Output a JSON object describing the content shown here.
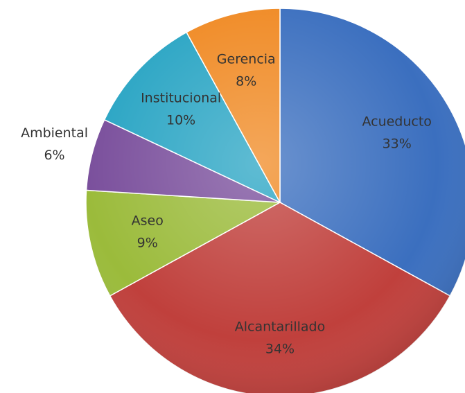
{
  "chart_data": {
    "type": "pie",
    "categories": [
      "Acueducto",
      "Alcantarillado",
      "Aseo",
      "Ambiental",
      "Institucional",
      "Gerencia"
    ],
    "values": [
      33,
      34,
      9,
      6,
      10,
      8
    ],
    "value_labels": [
      "33%",
      "34%",
      "9%",
      "6%",
      "10%",
      "8%"
    ],
    "colors": [
      "#3b6fbf",
      "#c0403c",
      "#9bbb3b",
      "#7a4f9c",
      "#2aa5c4",
      "#f08a24"
    ],
    "start_angle": 0,
    "direction": "clockwise"
  }
}
